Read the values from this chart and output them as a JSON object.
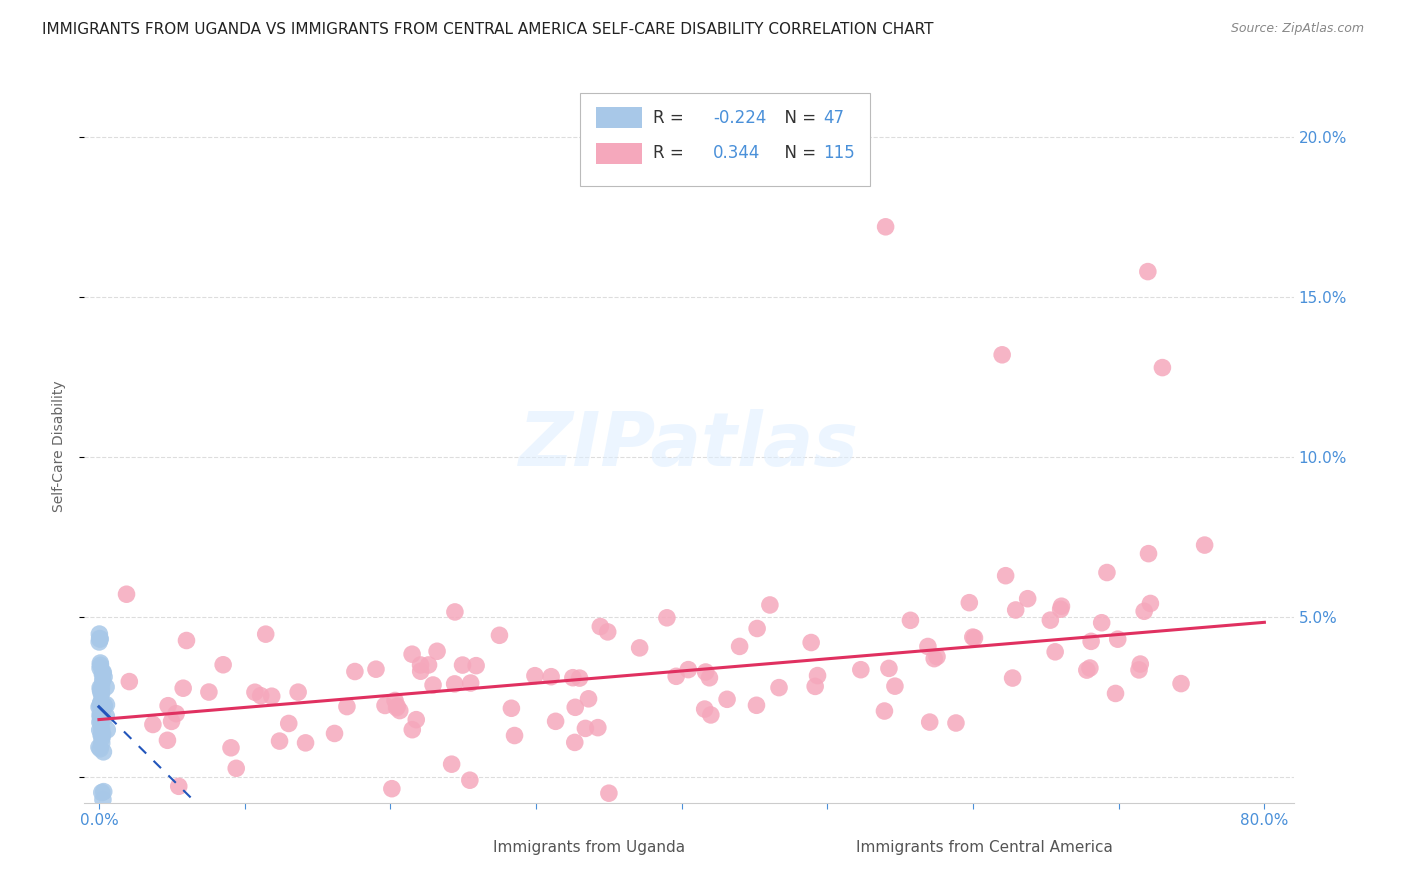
{
  "title": "IMMIGRANTS FROM UGANDA VS IMMIGRANTS FROM CENTRAL AMERICA SELF-CARE DISABILITY CORRELATION CHART",
  "source": "Source: ZipAtlas.com",
  "ylabel": "Self-Care Disability",
  "xlim": [
    -0.01,
    0.82
  ],
  "ylim": [
    -0.008,
    0.215
  ],
  "ytick_vals": [
    0.0,
    0.05,
    0.1,
    0.15,
    0.2
  ],
  "xtick_vals": [
    0.0,
    0.1,
    0.2,
    0.3,
    0.4,
    0.5,
    0.6,
    0.7,
    0.8
  ],
  "uganda_color": "#a8c8e8",
  "central_america_color": "#f5a8bc",
  "uganda_R": -0.224,
  "uganda_N": 47,
  "central_america_R": 0.344,
  "central_america_N": 115,
  "uganda_line_color": "#2255bb",
  "central_america_line_color": "#e03060",
  "background_color": "#ffffff",
  "grid_color": "#dddddd",
  "title_fontsize": 11,
  "axis_label_color": "#4a90d9",
  "right_ytick_labels": [
    "",
    "5.0%",
    "10.0%",
    "15.0%",
    "20.0%"
  ]
}
